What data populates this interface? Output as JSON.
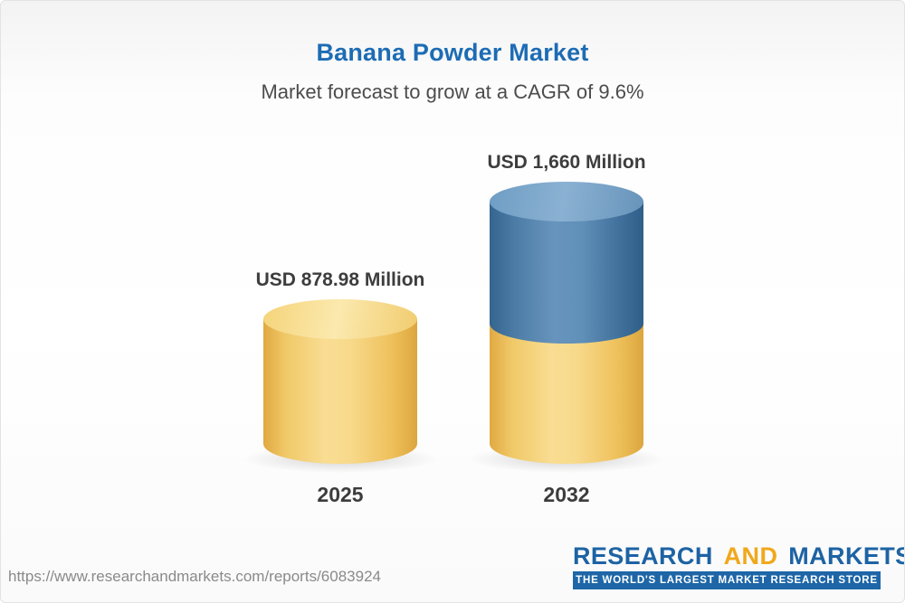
{
  "header": {
    "title": "Banana Powder Market",
    "subtitle": "Market forecast to grow at a CAGR of 9.6%"
  },
  "chart_data": {
    "type": "bar",
    "title": "Banana Powder Market",
    "subtitle": "Market forecast to grow at a CAGR of 9.6%",
    "categories": [
      "2025",
      "2032"
    ],
    "values": [
      878.98,
      1660
    ],
    "value_labels": [
      "USD 878.98 Million",
      "USD 1,660 Million"
    ],
    "unit": "USD Million",
    "cagr": "9.6%",
    "legend_position": "none",
    "grid": false,
    "colors": {
      "bar_2025": "#f6d376",
      "bar_2032_bottom_segment": "#f6d376",
      "bar_2032_top_segment": "#4e82ad",
      "title": "#1d6cb4"
    }
  },
  "bars": [
    {
      "year": "2025",
      "label": "USD 878.98 Million"
    },
    {
      "year": "2032",
      "label": "USD 1,660 Million"
    }
  ],
  "footer": {
    "url": "https://www.researchandmarkets.com/reports/6083924",
    "logo": {
      "part1": "RESEARCH",
      "part2": "AND",
      "part3": "MARKETS",
      "tagline": "THE WORLD'S LARGEST MARKET RESEARCH STORE"
    }
  }
}
